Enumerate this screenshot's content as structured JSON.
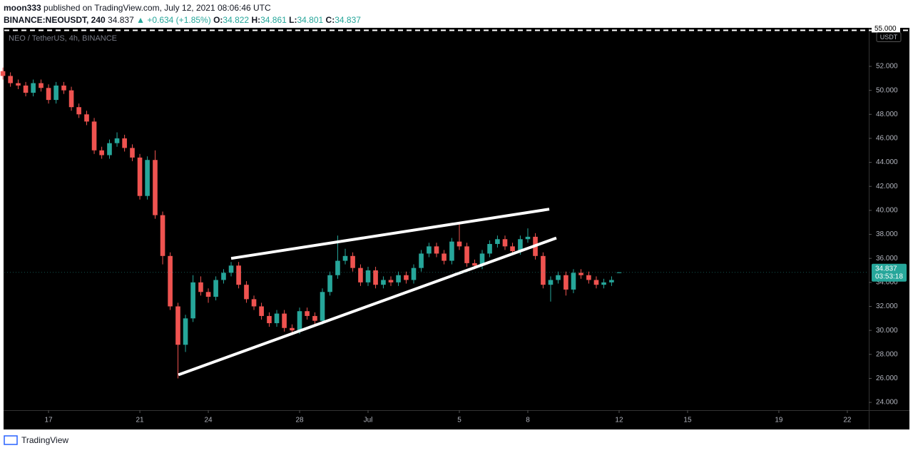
{
  "header": {
    "publisher": "moon333",
    "published": "published on TradingView.com, July 12, 2021 08:06:46 UTC",
    "symbol": "BINANCE:NEOUSDT, 240",
    "last": "34.837",
    "change": "+0.634 (+1.85%)",
    "o_label": "O:",
    "o": "34.822",
    "h_label": "H:",
    "h": "34.861",
    "l_label": "L:",
    "l": "34.801",
    "c_label": "C:",
    "c": "34.837"
  },
  "footer": {
    "brand": "TradingView"
  },
  "chart_data": {
    "type": "candlestick",
    "title": "NEO / TetherUS, 4h, BINANCE",
    "currency": "USDT",
    "up_color": "#26a69a",
    "down_color": "#ef5350",
    "x": [
      15,
      15.33,
      15.67,
      16,
      16.33,
      16.67,
      17,
      17.33,
      17.67,
      18,
      18.33,
      18.67,
      19,
      19.33,
      19.67,
      20,
      20.33,
      20.67,
      21,
      21.33,
      21.67,
      22,
      22.33,
      22.67,
      23,
      23.33,
      23.67,
      24,
      24.33,
      24.67,
      25,
      25.33,
      25.67,
      26,
      26.33,
      26.67,
      27,
      27.33,
      27.67,
      28,
      28.33,
      28.67,
      29,
      29.33,
      29.67,
      30,
      30.33,
      30.67,
      31,
      31.33,
      31.67,
      32,
      32.33,
      32.67,
      33,
      33.33,
      33.67,
      34,
      34.33,
      34.67,
      35,
      35.33,
      35.67,
      36,
      36.33,
      36.67,
      37,
      37.33,
      37.67,
      38,
      38.33,
      38.67,
      39,
      39.33,
      39.67,
      40,
      40.33,
      40.67,
      41,
      41.33,
      41.67,
      42
    ],
    "open": [
      51.6,
      51.2,
      50.6,
      50.4,
      49.8,
      50.6,
      50.2,
      49.2,
      50.4,
      50.0,
      48.6,
      48.0,
      47.4,
      45.0,
      44.6,
      45.6,
      46.0,
      45.2,
      44.4,
      41.2,
      44.2,
      39.6,
      36.2,
      32.0,
      28.8,
      31.0,
      34.0,
      33.2,
      32.8,
      34.2,
      34.8,
      35.4,
      33.8,
      32.6,
      32.0,
      31.2,
      30.6,
      31.4,
      30.2,
      30.0,
      31.6,
      31.2,
      30.8,
      33.2,
      34.6,
      35.8,
      36.2,
      35.2,
      34.0,
      35.0,
      33.8,
      34.2,
      34.0,
      34.6,
      34.2,
      35.2,
      36.4,
      37.0,
      36.4,
      35.8,
      37.4,
      37.0,
      35.6,
      35.4,
      36.4,
      37.2,
      37.6,
      37.0,
      36.6,
      37.6,
      37.8,
      36.2,
      33.8,
      34.2,
      34.6,
      33.4,
      34.8,
      34.6,
      34.2,
      33.8,
      34.0,
      34.822
    ],
    "high": [
      51.9,
      51.5,
      50.9,
      50.7,
      50.9,
      50.9,
      50.5,
      50.7,
      50.7,
      50.3,
      48.9,
      48.3,
      47.7,
      45.3,
      45.9,
      46.5,
      46.3,
      45.5,
      44.7,
      44.5,
      45.0,
      39.9,
      36.5,
      32.3,
      31.3,
      34.6,
      34.5,
      33.5,
      34.5,
      35.1,
      35.7,
      35.7,
      34.1,
      32.9,
      32.3,
      31.5,
      31.7,
      31.7,
      30.5,
      31.9,
      31.9,
      31.5,
      33.5,
      34.9,
      37.9,
      36.8,
      36.5,
      35.5,
      35.3,
      35.3,
      34.5,
      34.5,
      34.9,
      34.9,
      35.5,
      36.7,
      37.3,
      37.3,
      36.7,
      37.7,
      38.9,
      37.3,
      35.9,
      36.7,
      37.5,
      37.9,
      37.9,
      37.3,
      37.9,
      38.5,
      38.1,
      36.5,
      34.5,
      34.9,
      34.9,
      35.1,
      35.1,
      34.9,
      34.5,
      34.3,
      34.5,
      34.861
    ],
    "low": [
      50.9,
      50.3,
      50.1,
      49.5,
      49.5,
      49.9,
      48.9,
      48.9,
      49.7,
      48.3,
      47.7,
      47.1,
      44.7,
      44.3,
      44.3,
      45.3,
      44.9,
      44.1,
      40.9,
      40.9,
      39.3,
      35.5,
      31.7,
      26.0,
      28.2,
      30.7,
      32.9,
      32.3,
      32.5,
      33.9,
      34.5,
      33.5,
      32.3,
      31.7,
      30.9,
      30.3,
      30.3,
      29.9,
      29.6,
      29.7,
      30.9,
      30.5,
      30.5,
      32.9,
      34.3,
      35.5,
      34.9,
      33.7,
      33.7,
      33.5,
      33.5,
      33.7,
      33.7,
      33.9,
      33.9,
      34.9,
      36.1,
      36.1,
      35.5,
      35.5,
      36.7,
      35.3,
      35.1,
      35.1,
      36.1,
      36.9,
      36.7,
      36.3,
      36.3,
      37.3,
      35.9,
      33.5,
      32.4,
      33.9,
      32.9,
      33.1,
      34.3,
      33.9,
      33.5,
      33.5,
      33.7,
      34.801
    ],
    "close": [
      51.2,
      50.6,
      50.4,
      49.8,
      50.6,
      50.2,
      49.2,
      50.4,
      50.0,
      48.6,
      48.0,
      47.4,
      45.0,
      44.6,
      45.6,
      46.0,
      45.2,
      44.4,
      41.2,
      44.2,
      39.6,
      36.2,
      32.0,
      28.8,
      31.0,
      34.0,
      33.2,
      32.8,
      34.2,
      34.8,
      35.4,
      33.8,
      32.6,
      32.0,
      31.2,
      30.6,
      31.4,
      30.2,
      30.0,
      31.6,
      31.2,
      30.8,
      33.2,
      34.6,
      35.8,
      36.2,
      35.2,
      34.0,
      35.0,
      33.8,
      34.2,
      34.0,
      34.6,
      34.2,
      35.2,
      36.4,
      37.0,
      36.4,
      35.8,
      37.4,
      37.0,
      35.6,
      35.4,
      36.4,
      37.2,
      37.6,
      37.0,
      36.6,
      37.6,
      37.8,
      36.2,
      33.8,
      34.2,
      34.6,
      33.4,
      34.8,
      34.6,
      34.2,
      33.8,
      34.0,
      34.2,
      34.837
    ],
    "last_label": {
      "value": 34.837,
      "label": "34.837"
    },
    "countdown": "03:53:18",
    "alert_line": {
      "value": 55,
      "label": "55.000"
    },
    "trendlines": [
      {
        "x": [
          25.0,
          38.94
        ],
        "y": [
          36.0,
          40.1
        ]
      },
      {
        "x": [
          22.69,
          39.25
        ],
        "y": [
          26.3,
          37.7
        ]
      }
    ],
    "xlim": [
      15.06,
      52.94
    ],
    "xticks": [
      {
        "value": 17,
        "label": "17"
      },
      {
        "value": 21,
        "label": "21"
      },
      {
        "value": 24,
        "label": "24"
      },
      {
        "value": 28,
        "label": "28"
      },
      {
        "value": 31,
        "label": "Jul"
      },
      {
        "value": 35,
        "label": "5"
      },
      {
        "value": 38,
        "label": "8"
      },
      {
        "value": 42,
        "label": "12"
      },
      {
        "value": 45,
        "label": "15"
      },
      {
        "value": 49,
        "label": "19"
      },
      {
        "value": 52,
        "label": "22"
      }
    ],
    "ylim": [
      23.35,
      55.15
    ],
    "yticks": [
      {
        "value": 24,
        "label": "24.000"
      },
      {
        "value": 26,
        "label": "26.000"
      },
      {
        "value": 28,
        "label": "28.000"
      },
      {
        "value": 30,
        "label": "30.000"
      },
      {
        "value": 32,
        "label": "32.000"
      },
      {
        "value": 34,
        "label": "34.000"
      },
      {
        "value": 36,
        "label": "36.000"
      },
      {
        "value": 38,
        "label": "38.000"
      },
      {
        "value": 40,
        "label": "40.000"
      },
      {
        "value": 42,
        "label": "42.000"
      },
      {
        "value": 44,
        "label": "44.000"
      },
      {
        "value": 46,
        "label": "46.000"
      },
      {
        "value": 48,
        "label": "48.000"
      },
      {
        "value": 50,
        "label": "50.000"
      },
      {
        "value": 52,
        "label": "52.000"
      }
    ],
    "grid": false
  }
}
